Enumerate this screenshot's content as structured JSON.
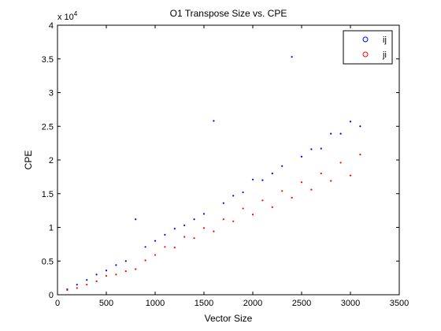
{
  "chart_data": {
    "type": "scatter",
    "title": "O1 Transpose Size vs. CPE",
    "xlabel": "Vector Size",
    "ylabel": "CPE",
    "xlim": [
      0,
      3500
    ],
    "ylim": [
      0,
      40000
    ],
    "x_ticks": [
      0,
      500,
      1000,
      1500,
      2000,
      2500,
      3000,
      3500
    ],
    "y_ticks": [
      0,
      0.5,
      1,
      1.5,
      2,
      2.5,
      3,
      3.5,
      4
    ],
    "y_tick_labels": [
      "0",
      "0.5",
      "1",
      "1.5",
      "2",
      "2.5",
      "3",
      "3.5",
      "4"
    ],
    "x_tick_labels": [
      "0",
      "500",
      "1000",
      "1500",
      "2000",
      "2500",
      "3000",
      "3500"
    ],
    "y_exponent_label": "x 10",
    "y_exponent_power": "4",
    "grid": false,
    "legend_position": "top-right",
    "x": [
      100,
      200,
      300,
      400,
      500,
      600,
      700,
      800,
      900,
      1000,
      1100,
      1200,
      1300,
      1400,
      1500,
      1600,
      1700,
      1800,
      1900,
      2000,
      2100,
      2200,
      2300,
      2400,
      2500,
      2600,
      2700,
      2800,
      2900,
      3000,
      3100
    ],
    "series": [
      {
        "name": "ij",
        "color": "#0000ff",
        "values": [
          800,
          1500,
          2200,
          3000,
          3600,
          4400,
          5000,
          11200,
          7100,
          8000,
          8900,
          9800,
          10300,
          11200,
          12000,
          25800,
          13600,
          14700,
          15200,
          17100,
          17000,
          18000,
          19100,
          35300,
          20500,
          21600,
          21700,
          23900,
          23900,
          25700,
          25000
        ]
      },
      {
        "name": "ji",
        "color": "#ff0000",
        "values": [
          700,
          1000,
          1500,
          2000,
          2800,
          3000,
          3500,
          3800,
          5100,
          5900,
          7100,
          7000,
          8600,
          8400,
          9900,
          9400,
          11200,
          10900,
          12800,
          11900,
          14000,
          13000,
          15400,
          14400,
          16700,
          15600,
          18000,
          16900,
          19600,
          17700,
          20800
        ]
      }
    ]
  }
}
